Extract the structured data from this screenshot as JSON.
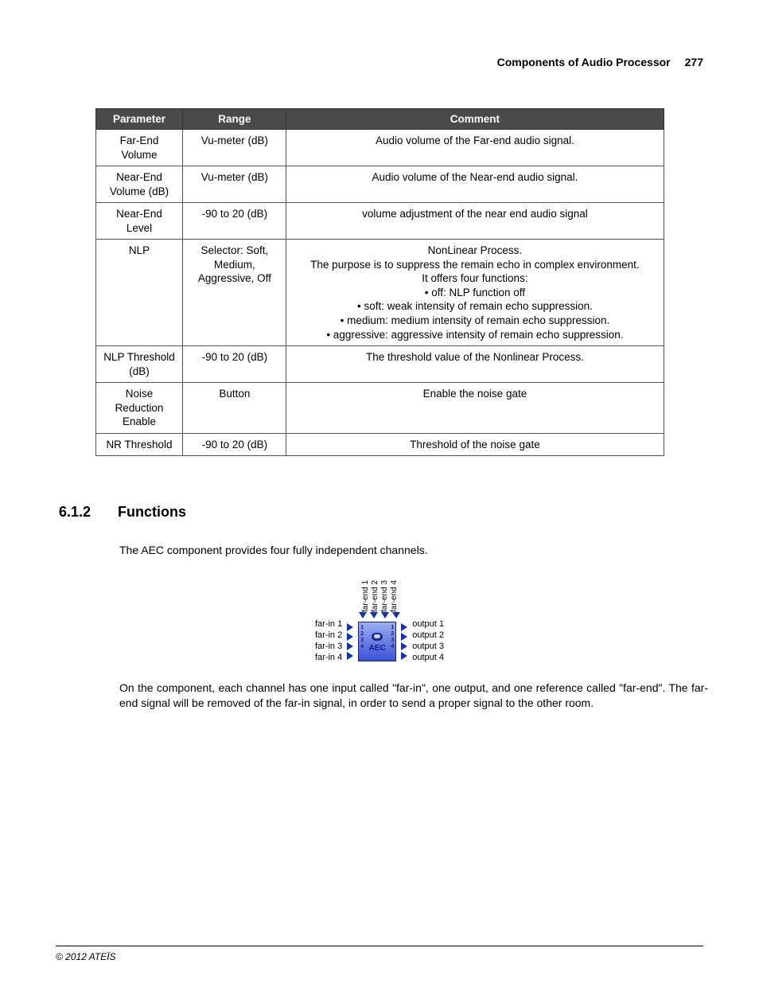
{
  "header": {
    "title": "Components of Audio Processor",
    "page_number": "277"
  },
  "table": {
    "headers": [
      "Parameter",
      "Range",
      "Comment"
    ],
    "header_bg": "#4a4a4a",
    "header_fg": "#ffffff",
    "border_color": "#555555",
    "rows": [
      {
        "param": "Far-End Volume",
        "range": "Vu-meter (dB)",
        "comment": "Audio volume of the Far-end audio signal."
      },
      {
        "param": "Near-End Volume (dB)",
        "range": "Vu-meter (dB)",
        "comment": "Audio volume of the Near-end audio signal."
      },
      {
        "param": "Near-End Level",
        "range": "-90 to 20 (dB)",
        "comment": "volume adjustment of the near end audio signal"
      },
      {
        "param": "NLP",
        "range": "Selector: Soft, Medium, Aggressive, Off",
        "comment_lines": [
          "NonLinear Process.",
          "The purpose is to suppress the remain echo in complex environment.",
          "It offers four functions:"
        ],
        "bullets": [
          "off: NLP function off",
          "soft: weak intensity of remain echo suppression.",
          "medium: medium intensity of remain echo suppression.",
          "aggressive: aggressive intensity of remain echo suppression."
        ]
      },
      {
        "param": "NLP Threshold (dB)",
        "range": "-90 to 20 (dB)",
        "comment": "The threshold value of the Nonlinear Process."
      },
      {
        "param": "Noise Reduction Enable",
        "range": "Button",
        "comment": "Enable the noise gate"
      },
      {
        "param": "NR Threshold",
        "range": "-90 to 20 (dB)",
        "comment": "Threshold of the noise gate"
      }
    ]
  },
  "section": {
    "number": "6.1.2",
    "title": "Functions",
    "para1": "The AEC component provides four fully independent channels.",
    "para2": "On the component, each channel has one input called \"far-in\", one output, and one reference called \"far-end\". The far-end signal will be removed of the far-in signal, in order to send a proper signal to the other room."
  },
  "diagram": {
    "farend_labels": [
      "far-end 1",
      "far-end 2",
      "far-end 3",
      "far-end 4"
    ],
    "left_labels": [
      "far-in 1",
      "far-in 2",
      "far-in 3",
      "far-in 4"
    ],
    "right_labels": [
      "output 1",
      "output 2",
      "output 3",
      "output 4"
    ],
    "box_label": "AEC",
    "box_bg_top": "#9aaef2",
    "box_bg_bottom": "#3a52d8",
    "arrow_color": "#1030c0"
  },
  "footer": {
    "copyright": "© 2012 ATEÏS"
  }
}
